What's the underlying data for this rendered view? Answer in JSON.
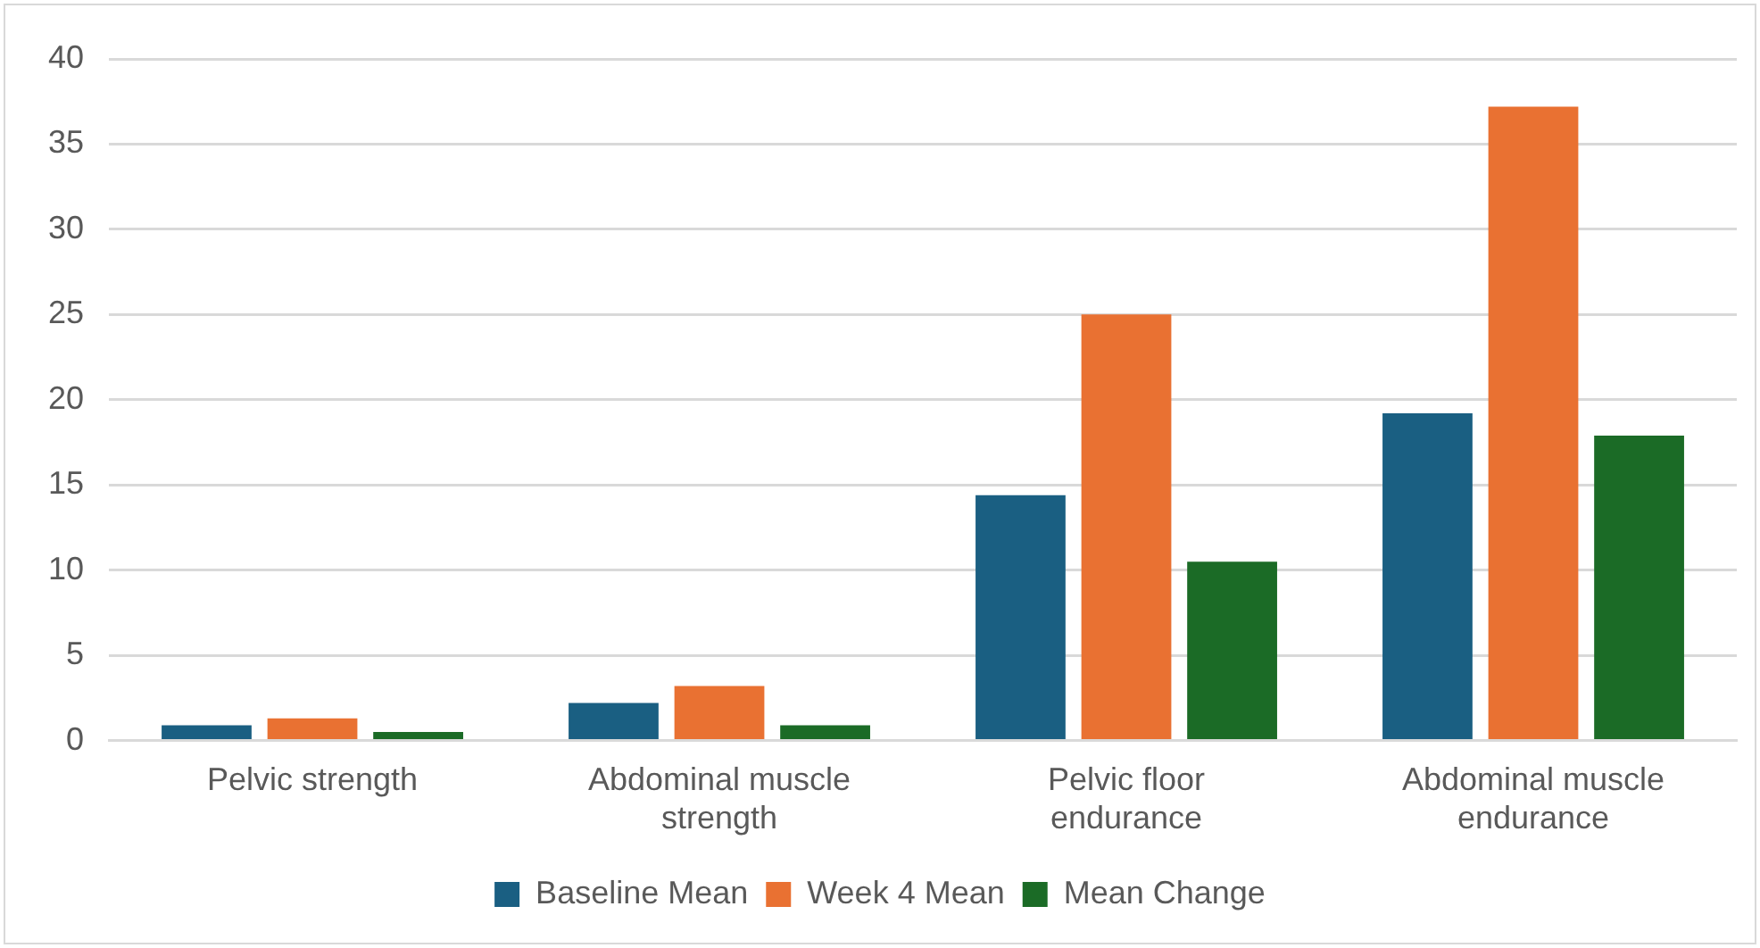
{
  "chart_data": {
    "type": "bar",
    "categories": [
      "Pelvic strength",
      "Abdominal muscle strength",
      "Pelvic floor endurance",
      "Abdominal muscle endurance"
    ],
    "series": [
      {
        "name": "Baseline Mean",
        "color": "#1a5f82",
        "values": [
          0.9,
          2.2,
          14.4,
          19.2
        ]
      },
      {
        "name": "Week 4 Mean",
        "color": "#e97132",
        "values": [
          1.3,
          3.2,
          25.0,
          37.2
        ]
      },
      {
        "name": "Mean Change",
        "color": "#1b6b26",
        "values": [
          0.5,
          0.9,
          10.5,
          17.9
        ]
      }
    ],
    "ylim": [
      0,
      40
    ],
    "yticks": [
      0,
      5,
      10,
      15,
      20,
      25,
      30,
      35,
      40
    ],
    "grid": "y",
    "legend": "bottom"
  }
}
